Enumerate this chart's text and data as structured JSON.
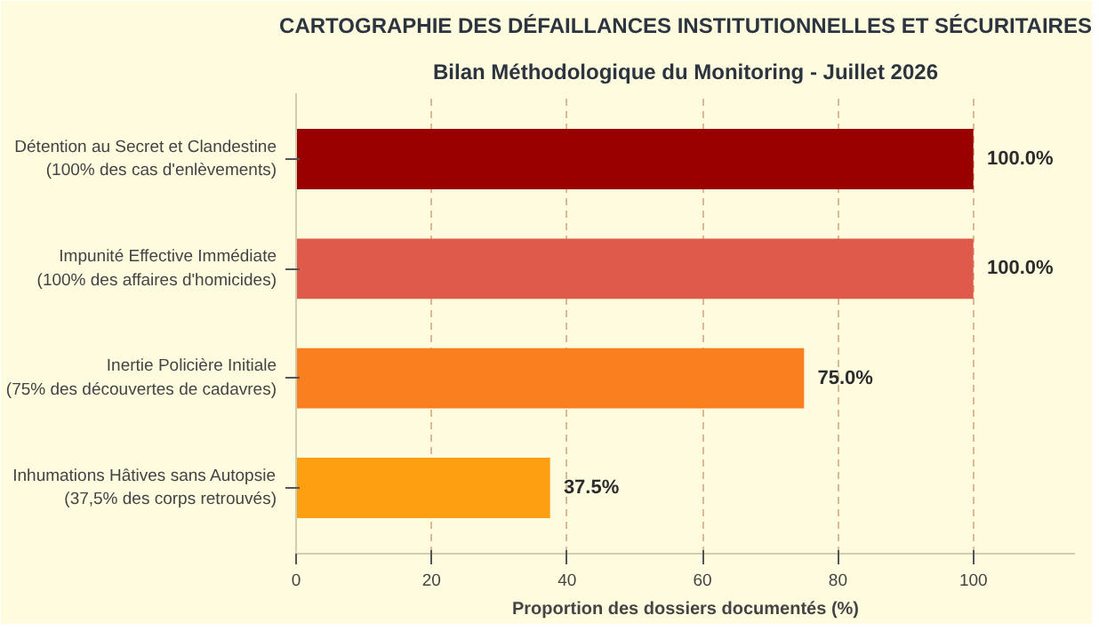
{
  "chart_data": {
    "type": "bar",
    "orientation": "horizontal",
    "title": "CARTOGRAPHIE DES DÉFAILLANCES INSTITUTIONNELLES ET SÉCURITAIRES",
    "subtitle": "Bilan Méthodologique du Monitoring - Juillet 2026",
    "xlabel": "Proportion des dossiers documentés (%)",
    "categories": [
      "Détention au Secret et Clandestine\n(100% des cas d'enlèvements)",
      "Impunité Effective Immédiate\n(100% des affaires d'homicides)",
      "Inertie Policière Initiale\n(75% des découvertes de cadavres)",
      "Inhumations Hâtives sans Autopsie\n(37,5% des corps retrouvés)"
    ],
    "values": [
      100,
      100,
      75,
      37.5
    ],
    "colors": [
      "#990000",
      "#e05a4b",
      "#fa7f1f",
      "#fd9f11"
    ],
    "value_labels": [
      "100.0%",
      "100.0%",
      "75.0%",
      "37.5%"
    ],
    "xlim": [
      0,
      115
    ],
    "xticks": [
      0,
      20,
      40,
      60,
      80,
      100
    ],
    "grid": "x"
  }
}
